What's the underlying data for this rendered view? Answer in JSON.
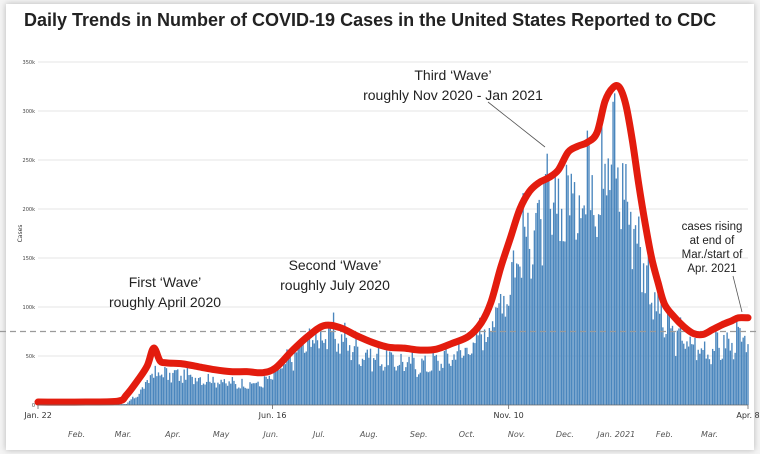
{
  "chart_data": {
    "type": "bar",
    "title": "Daily Trends in Number of COVID-19 Cases in the United States Reported to CDC",
    "ylabel": "Cases",
    "ylim": [
      0,
      350000
    ],
    "yticks": [
      0,
      50000,
      100000,
      150000,
      200000,
      250000,
      300000,
      350000
    ],
    "ytick_labels": [
      "0",
      "50k",
      "100k",
      "150k",
      "200k",
      "250k",
      "300k",
      "350k"
    ],
    "x_start": "Jan. 22",
    "x_end": "Apr. 8",
    "x_days": 443,
    "xtick_labels": [
      {
        "day": 0,
        "label": "Jan. 22"
      },
      {
        "day": 146,
        "label": "Jun. 16"
      },
      {
        "day": 293,
        "label": "Nov. 10"
      },
      {
        "day": 442,
        "label": "Apr. 8"
      }
    ],
    "month_labels": [
      {
        "day": 24,
        "label": "Feb."
      },
      {
        "day": 53,
        "label": "Mar."
      },
      {
        "day": 84,
        "label": "Apr."
      },
      {
        "day": 114,
        "label": "May"
      },
      {
        "day": 145,
        "label": "Jun."
      },
      {
        "day": 175,
        "label": "Jul."
      },
      {
        "day": 206,
        "label": "Aug."
      },
      {
        "day": 237,
        "label": "Sep."
      },
      {
        "day": 267,
        "label": "Oct."
      },
      {
        "day": 298,
        "label": "Nov."
      },
      {
        "day": 328,
        "label": "Dec."
      },
      {
        "day": 360,
        "label": "Jan. 2021"
      },
      {
        "day": 390,
        "label": "Feb."
      },
      {
        "day": 418,
        "label": "Mar."
      }
    ],
    "reference_line": 75000,
    "daily_cases_anchors": [
      [
        0,
        0
      ],
      [
        40,
        0
      ],
      [
        55,
        1000
      ],
      [
        65,
        15000
      ],
      [
        70,
        30000
      ],
      [
        75,
        33000
      ],
      [
        80,
        31000
      ],
      [
        90,
        30000
      ],
      [
        100,
        28000
      ],
      [
        110,
        25000
      ],
      [
        120,
        22000
      ],
      [
        130,
        21000
      ],
      [
        140,
        22000
      ],
      [
        150,
        35000
      ],
      [
        160,
        52000
      ],
      [
        170,
        68000
      ],
      [
        180,
        72000
      ],
      [
        190,
        66000
      ],
      [
        200,
        55000
      ],
      [
        210,
        48000
      ],
      [
        220,
        45000
      ],
      [
        230,
        42000
      ],
      [
        240,
        40000
      ],
      [
        250,
        45000
      ],
      [
        260,
        52000
      ],
      [
        270,
        60000
      ],
      [
        280,
        80000
      ],
      [
        290,
        110000
      ],
      [
        300,
        160000
      ],
      [
        310,
        185000
      ],
      [
        320,
        195000
      ],
      [
        330,
        210000
      ],
      [
        340,
        220000
      ],
      [
        345,
        230000
      ],
      [
        350,
        240000
      ],
      [
        355,
        255000
      ],
      [
        360,
        240000
      ],
      [
        365,
        220000
      ],
      [
        370,
        190000
      ],
      [
        375,
        160000
      ],
      [
        380,
        130000
      ],
      [
        385,
        100000
      ],
      [
        390,
        82000
      ],
      [
        395,
        72000
      ],
      [
        400,
        70000
      ],
      [
        405,
        62000
      ],
      [
        410,
        58000
      ],
      [
        415,
        56000
      ],
      [
        420,
        58000
      ],
      [
        425,
        60000
      ],
      [
        430,
        62000
      ],
      [
        435,
        66000
      ],
      [
        442,
        64000
      ]
    ],
    "trend_line_anchors": [
      [
        0,
        3000
      ],
      [
        30,
        3000
      ],
      [
        50,
        4000
      ],
      [
        55,
        10000
      ],
      [
        62,
        25000
      ],
      [
        68,
        40000
      ],
      [
        72,
        58000
      ],
      [
        76,
        45000
      ],
      [
        80,
        43000
      ],
      [
        90,
        42000
      ],
      [
        100,
        39000
      ],
      [
        110,
        36000
      ],
      [
        120,
        34000
      ],
      [
        130,
        34000
      ],
      [
        140,
        33000
      ],
      [
        148,
        38000
      ],
      [
        158,
        55000
      ],
      [
        168,
        70000
      ],
      [
        178,
        81000
      ],
      [
        188,
        79000
      ],
      [
        198,
        71000
      ],
      [
        208,
        64000
      ],
      [
        218,
        59000
      ],
      [
        228,
        58000
      ],
      [
        238,
        56000
      ],
      [
        248,
        57000
      ],
      [
        258,
        63000
      ],
      [
        268,
        70000
      ],
      [
        276,
        84000
      ],
      [
        282,
        105000
      ],
      [
        288,
        140000
      ],
      [
        294,
        170000
      ],
      [
        300,
        200000
      ],
      [
        306,
        218000
      ],
      [
        312,
        227000
      ],
      [
        318,
        232000
      ],
      [
        324,
        240000
      ],
      [
        330,
        258000
      ],
      [
        336,
        264000
      ],
      [
        342,
        268000
      ],
      [
        348,
        278000
      ],
      [
        353,
        310000
      ],
      [
        358,
        324000
      ],
      [
        362,
        324000
      ],
      [
        366,
        306000
      ],
      [
        370,
        270000
      ],
      [
        374,
        225000
      ],
      [
        378,
        185000
      ],
      [
        382,
        150000
      ],
      [
        386,
        125000
      ],
      [
        390,
        103000
      ],
      [
        396,
        90000
      ],
      [
        402,
        80000
      ],
      [
        408,
        73000
      ],
      [
        414,
        72000
      ],
      [
        420,
        77000
      ],
      [
        426,
        82000
      ],
      [
        432,
        86000
      ],
      [
        436,
        89000
      ],
      [
        442,
        89000
      ]
    ],
    "annotations": {
      "wave1": [
        "First ‘Wave’",
        "roughly April 2020"
      ],
      "wave2": [
        "Second ‘Wave’",
        "roughly July 2020"
      ],
      "wave3": [
        "Third ‘Wave’",
        "roughly Nov 2020 - Jan 2021"
      ],
      "rising": [
        "cases rising",
        "at end of",
        "Mar./start of",
        "Apr. 2021"
      ]
    },
    "colors": {
      "bars": "#4a86bd",
      "trend": "#e31c0e",
      "grid": "#cccccc",
      "reference": "#9a9a9a"
    }
  }
}
